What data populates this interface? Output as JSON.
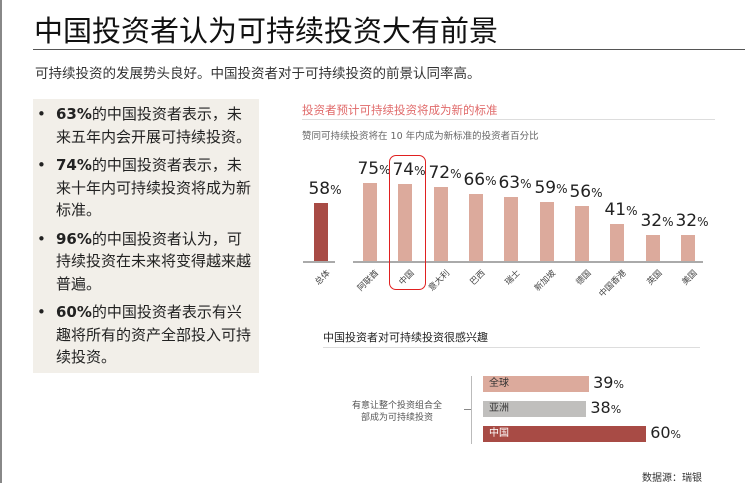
{
  "title": "中国投资者认为可持续投资大有前景",
  "subtitle": "可持续投资的发展势头良好。中国投资者对于可持续投资的前景认同率高。",
  "bullets": [
    {
      "bold": "63%",
      "text": "的中国投资者表示，未来五年内会开展可持续投资。"
    },
    {
      "bold": "74%",
      "text": "的中国投资者表示，未来十年内可持续投资将成为新标准。"
    },
    {
      "bold": "96%",
      "text": "的中国投资者认为，可持续投资在未来将变得越来越普遍。"
    },
    {
      "bold": "60%",
      "text": "的中国投资者表示有兴趣将所有的资产全部投入可持续投资。"
    }
  ],
  "colors": {
    "overall": "#a84b45",
    "country": "#dcaa9c",
    "asia": "#c0bfbd",
    "highlight": "#e02020",
    "title_red": "#e06a6a"
  },
  "source": "数据源：瑞银",
  "chart_data": [
    {
      "type": "bar",
      "title": "投资者预计可持续投资将成为新的标准",
      "subtitle": "赞同可持续投资将在 10 年内成为新标准的投资者百分比",
      "categories": [
        "总体",
        "阿联酋",
        "中国",
        "意大利",
        "巴西",
        "瑞士",
        "新加坡",
        "德国",
        "中国香港",
        "英国",
        "美国"
      ],
      "values": [
        58,
        75,
        74,
        72,
        66,
        63,
        59,
        56,
        41,
        32,
        32
      ],
      "unit": "%",
      "highlighted": "中国"
    },
    {
      "type": "bar",
      "orientation": "horizontal",
      "title": "中国投资者对可持续投资很感兴趣",
      "group_label": "有意让整个投资组合全部成为可持续投资",
      "categories": [
        "全球",
        "亚洲",
        "中国"
      ],
      "values": [
        39,
        38,
        60
      ],
      "unit": "%"
    }
  ]
}
